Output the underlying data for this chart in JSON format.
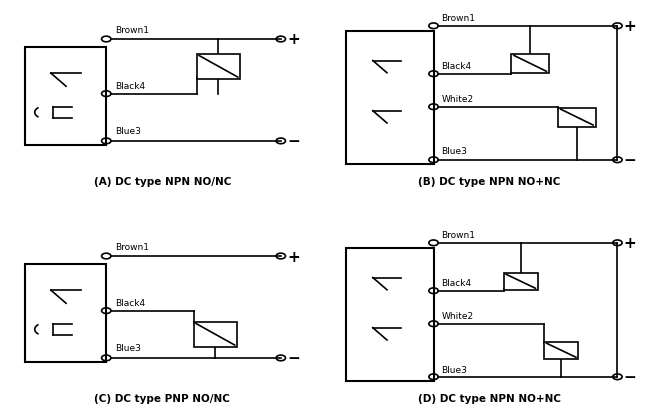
{
  "bg_color": "#ffffff",
  "diagrams": {
    "A": {
      "label": "(A) DC type NPN NO/NC",
      "wires": [
        "Brown1",
        "Black4",
        "Blue3"
      ],
      "switch_wires": [
        "Brown1",
        "Black4"
      ],
      "output_wires": [
        "Brown1",
        "Blue3"
      ],
      "plus_wire": "Brown1",
      "minus_wire": "Blue3"
    },
    "B": {
      "label": "(B) DC type NPN NO+NC",
      "wires": [
        "Brown1",
        "Black4",
        "White2",
        "Blue3"
      ],
      "plus_wire": "Brown1",
      "minus_wire": "Blue3"
    },
    "C": {
      "label": "(C) DC type PNP NO/NC",
      "wires": [
        "Brown1",
        "Black4",
        "Blue3"
      ],
      "switch_wires": [
        "Black4",
        "Blue3"
      ],
      "plus_wire": "Brown1",
      "minus_wire": "Blue3"
    },
    "D": {
      "label": "(D) DC type NPN NO+NC",
      "wires": [
        "Brown1",
        "Black4",
        "White2",
        "Blue3"
      ],
      "plus_wire": "Brown1",
      "minus_wire": "Blue3"
    }
  }
}
